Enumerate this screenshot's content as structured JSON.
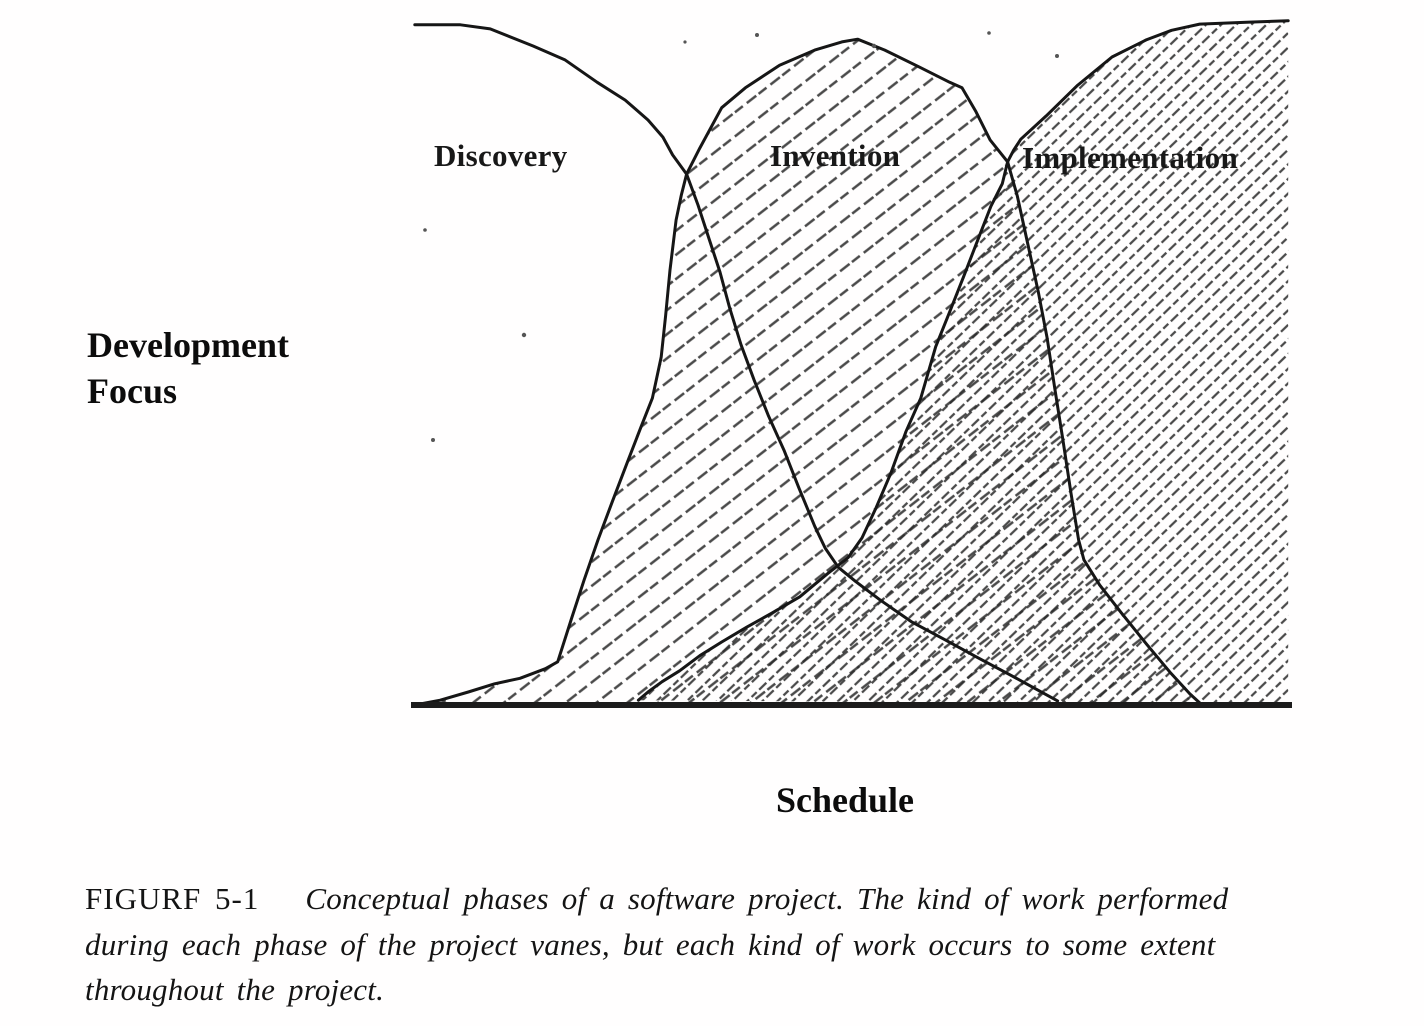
{
  "figure": {
    "phase_labels": {
      "discovery": "Discovery",
      "invention": "Invention",
      "implementation": "Implementation"
    },
    "y_axis_label_line1": "Development",
    "y_axis_label_line2": "Focus",
    "x_axis_label": "Schedule"
  },
  "caption": {
    "label": "FIGURF 5-1",
    "line1": "Conceptual phases of a software project. The kind of work performed",
    "line2": "during each phase of the project vanes, but each kind of work occurs to some extent",
    "line3": "throughout the project."
  },
  "colors": {
    "ink": "#1a1a1a",
    "paper": "#ffffff",
    "hatch": "#2a2a2a"
  },
  "chart_data": {
    "type": "area",
    "title": "Conceptual phases of a software project",
    "xlabel": "Schedule",
    "ylabel": "Development Focus",
    "axes_numeric": false,
    "x_range_percent": [
      0,
      100
    ],
    "y_range_percent": [
      0,
      100
    ],
    "legend_position": "labels-inline-on-curves",
    "grid": false,
    "series": [
      {
        "name": "Discovery",
        "style": "open-curve-no-fill",
        "hatch": "none",
        "points": [
          [
            0.2,
            99.3
          ],
          [
            5.4,
            99.3
          ],
          [
            8.8,
            98.7
          ],
          [
            13.7,
            96.2
          ],
          [
            17.3,
            94.2
          ],
          [
            21,
            90.9
          ],
          [
            24.2,
            88.3
          ],
          [
            26.8,
            85.4
          ],
          [
            28.5,
            82.9
          ],
          [
            29.6,
            80.3
          ],
          [
            31.2,
            77.5
          ],
          [
            32.5,
            73
          ],
          [
            33.8,
            67.9
          ],
          [
            35,
            63.2
          ],
          [
            36.1,
            58
          ],
          [
            37.4,
            52.6
          ],
          [
            38.9,
            47.4
          ],
          [
            40.5,
            42.3
          ],
          [
            42.3,
            37.2
          ],
          [
            44,
            31.7
          ],
          [
            45.8,
            26.1
          ],
          [
            47,
            22.9
          ],
          [
            48.5,
            20.1
          ],
          [
            50.5,
            18
          ],
          [
            53.3,
            15.3
          ],
          [
            56.9,
            12.1
          ],
          [
            60.7,
            9.5
          ],
          [
            64.4,
            6.9
          ],
          [
            68.1,
            4.4
          ],
          [
            71.5,
            2
          ],
          [
            73.5,
            0.6
          ]
        ]
      },
      {
        "name": "Invention",
        "style": "closed-area",
        "hatch": "light-diagonal",
        "points": [
          [
            0.2,
            0
          ],
          [
            3.1,
            0.7
          ],
          [
            6.3,
            1.9
          ],
          [
            9.3,
            3.1
          ],
          [
            12.2,
            3.9
          ],
          [
            15.1,
            5.3
          ],
          [
            16.5,
            6.3
          ],
          [
            18.1,
            12.7
          ],
          [
            19.5,
            18.2
          ],
          [
            21.1,
            24.1
          ],
          [
            22.7,
            29.6
          ],
          [
            24.4,
            35.3
          ],
          [
            26,
            40.6
          ],
          [
            27.3,
            44.8
          ],
          [
            28.3,
            50.8
          ],
          [
            28.8,
            56.8
          ],
          [
            29.3,
            63.5
          ],
          [
            30,
            70.8
          ],
          [
            30.6,
            74.5
          ],
          [
            31.2,
            77.5
          ],
          [
            32.7,
            81.3
          ],
          [
            35.2,
            87.2
          ],
          [
            37.9,
            90.1
          ],
          [
            41.8,
            93.4
          ],
          [
            45.8,
            95.6
          ],
          [
            48.9,
            96.8
          ],
          [
            50.7,
            97.2
          ],
          [
            53.8,
            95.6
          ],
          [
            57.8,
            93.1
          ],
          [
            61.2,
            90.9
          ],
          [
            62.6,
            90.1
          ],
          [
            64.2,
            86.6
          ],
          [
            65.8,
            82.5
          ],
          [
            67.8,
            79.3
          ],
          [
            68.9,
            74.3
          ],
          [
            70.1,
            67.3
          ],
          [
            71.3,
            60.3
          ],
          [
            72.3,
            53.6
          ],
          [
            73.2,
            46
          ],
          [
            74.1,
            38.7
          ],
          [
            75,
            31.1
          ],
          [
            75.9,
            24.1
          ],
          [
            76.5,
            21.2
          ],
          [
            78.3,
            17.5
          ],
          [
            80.8,
            13.4
          ],
          [
            83.7,
            8.8
          ],
          [
            86.3,
            4.8
          ],
          [
            88.6,
            1.6
          ],
          [
            89.7,
            0.3
          ]
        ]
      },
      {
        "name": "Implementation",
        "style": "closed-area",
        "hatch": "dense-diagonal",
        "points": [
          [
            25.7,
            0.7
          ],
          [
            26.8,
            1.9
          ],
          [
            28.4,
            3.4
          ],
          [
            30.4,
            5
          ],
          [
            32.7,
            7.2
          ],
          [
            35.2,
            9.2
          ],
          [
            38.1,
            11.4
          ],
          [
            40.9,
            13.4
          ],
          [
            44.1,
            15.8
          ],
          [
            47.2,
            19.1
          ],
          [
            49.6,
            21.5
          ],
          [
            51.2,
            24.4
          ],
          [
            52.8,
            28.8
          ],
          [
            54.5,
            33.9
          ],
          [
            56.2,
            39.9
          ],
          [
            57.9,
            44.8
          ],
          [
            59.6,
            52.3
          ],
          [
            61.2,
            57.4
          ],
          [
            62.8,
            62.6
          ],
          [
            64.4,
            67.9
          ],
          [
            65.9,
            72.8
          ],
          [
            67.2,
            76.1
          ],
          [
            67.8,
            79.3
          ],
          [
            68.5,
            81
          ],
          [
            69.3,
            82.6
          ],
          [
            72.2,
            86
          ],
          [
            75.8,
            90.5
          ],
          [
            79.7,
            94.6
          ],
          [
            83.6,
            97.1
          ],
          [
            86.5,
            98.5
          ],
          [
            89.7,
            99.4
          ],
          [
            95.4,
            99.7
          ],
          [
            99.8,
            99.9
          ]
        ]
      }
    ]
  }
}
